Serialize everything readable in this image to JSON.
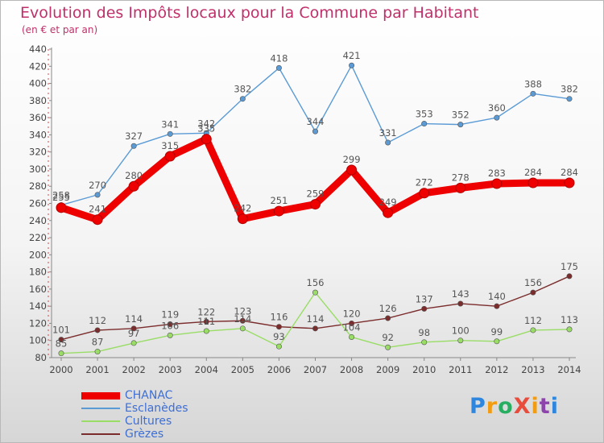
{
  "title": "Evolution des Impôts locaux pour la Commune par Habitant",
  "subtitle": "(en € et par an)",
  "logo_text": "ProXiti",
  "chart_data": {
    "type": "line",
    "x": [
      "2000",
      "2001",
      "2002",
      "2003",
      "2004",
      "2005",
      "2006",
      "2007",
      "2008",
      "2009",
      "2010",
      "2011",
      "2012",
      "2013",
      "2014"
    ],
    "ylim": [
      80,
      440
    ],
    "yticks": [
      80,
      100,
      120,
      140,
      160,
      180,
      200,
      220,
      240,
      260,
      280,
      300,
      320,
      340,
      360,
      380,
      400,
      420,
      440
    ],
    "grid": false,
    "legend_position": "bottom-left",
    "series": [
      {
        "name": "CHANAC",
        "color": "#ee0000",
        "values": [
          255,
          241,
          280,
          315,
          335,
          242,
          251,
          259,
          299,
          249,
          272,
          278,
          283,
          284,
          284
        ]
      },
      {
        "name": "Esclanèdes",
        "color": "#5b9bd5",
        "values": [
          258,
          270,
          327,
          341,
          342,
          382,
          418,
          344,
          421,
          331,
          353,
          352,
          360,
          388,
          382
        ]
      },
      {
        "name": "Cultures",
        "color": "#99dd66",
        "values": [
          85,
          87,
          97,
          106,
          111,
          114,
          93,
          156,
          104,
          92,
          98,
          100,
          99,
          112,
          113
        ]
      },
      {
        "name": "Grèzes",
        "color": "#7b2c2c",
        "values": [
          101,
          112,
          114,
          119,
          122,
          123,
          116,
          114,
          120,
          126,
          137,
          143,
          140,
          156,
          175
        ]
      }
    ]
  }
}
